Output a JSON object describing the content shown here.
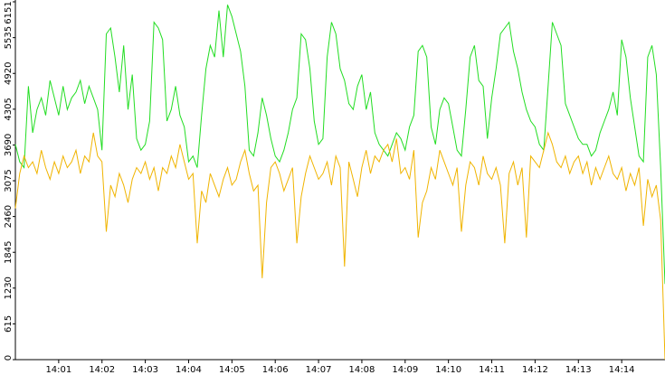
{
  "chart_data": {
    "type": "line",
    "categories": [
      null,
      null,
      null,
      null,
      null,
      null,
      null,
      null,
      null,
      null,
      "14:01",
      null,
      null,
      null,
      null,
      null,
      null,
      null,
      null,
      null,
      "14:02",
      null,
      null,
      null,
      null,
      null,
      null,
      null,
      null,
      null,
      "14:03",
      null,
      null,
      null,
      null,
      null,
      null,
      null,
      null,
      null,
      "14:04",
      null,
      null,
      null,
      null,
      null,
      null,
      null,
      null,
      null,
      "14:05",
      null,
      null,
      null,
      null,
      null,
      null,
      null,
      null,
      null,
      "14:06",
      null,
      null,
      null,
      null,
      null,
      null,
      null,
      null,
      null,
      "14:07",
      null,
      null,
      null,
      null,
      null,
      null,
      null,
      null,
      null,
      "14:08",
      null,
      null,
      null,
      null,
      null,
      null,
      null,
      null,
      null,
      "14:09",
      null,
      null,
      null,
      null,
      null,
      null,
      null,
      null,
      null,
      "14:10",
      null,
      null,
      null,
      null,
      null,
      null,
      null,
      null,
      null,
      "14:11",
      null,
      null,
      null,
      null,
      null,
      null,
      null,
      null,
      null,
      "14:12",
      null,
      null,
      null,
      null,
      null,
      null,
      null,
      null,
      null,
      "14:13",
      null,
      null,
      null,
      null,
      null,
      null,
      null,
      null,
      null,
      "14:14",
      null,
      null,
      null,
      null,
      null,
      null,
      null,
      null,
      null,
      null
    ],
    "series": [
      {
        "color": "#22dd22",
        "values": [
          3700,
          3400,
          3300,
          4700,
          3900,
          4300,
          4500,
          4200,
          4800,
          4500,
          4200,
          4700,
          4300,
          4500,
          4600,
          4800,
          4400,
          4700,
          4500,
          4300,
          3600,
          5600,
          5700,
          5200,
          4600,
          5400,
          4300,
          4900,
          3800,
          3600,
          3700,
          4100,
          5800,
          5700,
          5500,
          4100,
          4300,
          4700,
          4200,
          4000,
          3400,
          3500,
          3300,
          4200,
          5000,
          5400,
          5200,
          6000,
          5200,
          6100,
          5900,
          5600,
          5300,
          4700,
          3600,
          3500,
          3900,
          4500,
          4200,
          3800,
          3500,
          3400,
          3600,
          3900,
          4300,
          4500,
          5600,
          5500,
          5000,
          4100,
          3700,
          3800,
          5200,
          5800,
          5600,
          5000,
          4800,
          4400,
          4300,
          4700,
          4900,
          4300,
          4600,
          3900,
          3700,
          3600,
          3500,
          3700,
          3900,
          3800,
          3600,
          4000,
          4200,
          5300,
          5400,
          5200,
          4000,
          3700,
          4300,
          4500,
          4400,
          4000,
          3600,
          3500,
          4300,
          5200,
          5400,
          4800,
          4700,
          3800,
          4500,
          5000,
          5600,
          5700,
          5800,
          5300,
          5000,
          4600,
          4300,
          4100,
          4000,
          3700,
          3600,
          4700,
          5800,
          5600,
          5400,
          4400,
          4200,
          4000,
          3800,
          3700,
          3700,
          3500,
          3600,
          3900,
          4100,
          4300,
          4600,
          4200,
          5500,
          5200,
          4500,
          4000,
          3500,
          3400,
          5200,
          5400,
          4900,
          3300,
          1300
        ]
      },
      {
        "color": "#f0b400",
        "values": [
          2600,
          3200,
          3500,
          3300,
          3400,
          3200,
          3600,
          3300,
          3100,
          3400,
          3200,
          3500,
          3300,
          3400,
          3600,
          3200,
          3500,
          3400,
          3900,
          3500,
          3400,
          2200,
          3000,
          2800,
          3200,
          3000,
          2700,
          3100,
          3300,
          3200,
          3400,
          3100,
          3300,
          2900,
          3300,
          3200,
          3500,
          3300,
          3700,
          3400,
          3100,
          3200,
          2000,
          2900,
          2700,
          3200,
          3000,
          2800,
          3100,
          3300,
          3000,
          3100,
          3400,
          3600,
          3200,
          2900,
          3000,
          1400,
          2700,
          3300,
          3400,
          3200,
          2900,
          3100,
          3300,
          2000,
          2800,
          3200,
          3500,
          3300,
          3100,
          3200,
          3400,
          3000,
          3500,
          3300,
          1600,
          3400,
          3100,
          2800,
          3300,
          3600,
          3200,
          3500,
          3400,
          3600,
          3700,
          3400,
          3800,
          3200,
          3300,
          3100,
          3600,
          2100,
          2700,
          2900,
          3300,
          3100,
          3600,
          3400,
          3200,
          3000,
          3300,
          2200,
          3000,
          3400,
          3300,
          3000,
          3500,
          3200,
          3100,
          3300,
          3000,
          2000,
          3200,
          3400,
          3000,
          3300,
          2100,
          3500,
          3400,
          3300,
          3600,
          3900,
          3700,
          3400,
          3300,
          3500,
          3200,
          3400,
          3500,
          3200,
          3400,
          3000,
          3300,
          3100,
          3300,
          3500,
          3200,
          3100,
          3300,
          2900,
          3200,
          3000,
          3300,
          2300,
          3100,
          2800,
          3000,
          2400,
          0
        ]
      }
    ],
    "ylim": [
      0,
      6151
    ],
    "yticks": [
      0,
      615,
      1230,
      1845,
      2460,
      3075,
      3690,
      4305,
      4920,
      5535,
      6151
    ]
  }
}
